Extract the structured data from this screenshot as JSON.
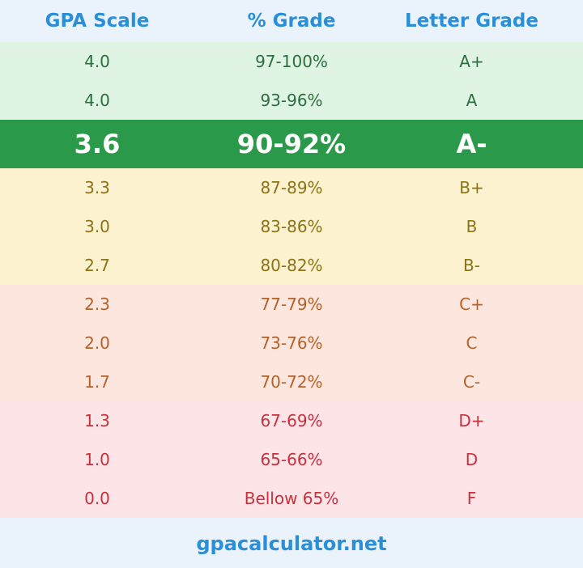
{
  "header": {
    "gpa_label": "GPA Scale",
    "percent_label": "% Grade",
    "letter_label": "Letter Grade"
  },
  "rows": [
    {
      "gpa": "4.0",
      "percent": "97-100%",
      "letter": "A+"
    },
    {
      "gpa": "4.0",
      "percent": "93-96%",
      "letter": "A"
    },
    {
      "gpa": "3.6",
      "percent": "90-92%",
      "letter": "A-"
    },
    {
      "gpa": "3.3",
      "percent": "87-89%",
      "letter": "B+"
    },
    {
      "gpa": "3.0",
      "percent": "83-86%",
      "letter": "B"
    },
    {
      "gpa": "2.7",
      "percent": "80-82%",
      "letter": "B-"
    },
    {
      "gpa": "2.3",
      "percent": "77-79%",
      "letter": "C+"
    },
    {
      "gpa": "2.0",
      "percent": "73-76%",
      "letter": "C"
    },
    {
      "gpa": "1.7",
      "percent": "70-72%",
      "letter": "C-"
    },
    {
      "gpa": "1.3",
      "percent": "67-69%",
      "letter": "D+"
    },
    {
      "gpa": "1.0",
      "percent": "65-66%",
      "letter": "D"
    },
    {
      "gpa": "0.0",
      "percent": "Bellow 65%",
      "letter": "F"
    }
  ],
  "footer": {
    "site": "gpacalculator.net"
  },
  "colors": {
    "accent": "#2a8fd9",
    "highlight": "#2a9a4a",
    "green_band": "#e0f4e3",
    "yellow_band": "#fcf2cf",
    "orange_band": "#fde6dd",
    "red_band": "#fde5e7"
  }
}
